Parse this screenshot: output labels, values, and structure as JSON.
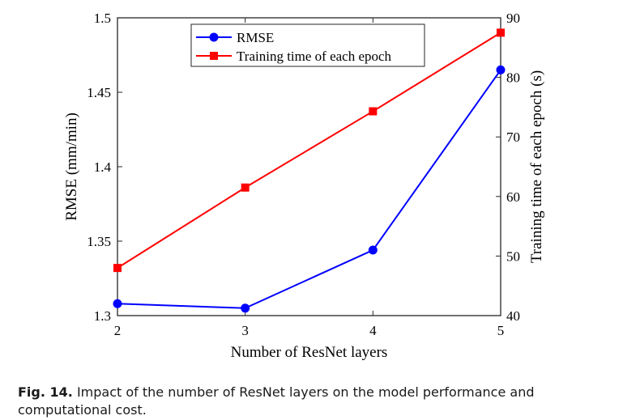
{
  "chart_data": {
    "type": "line",
    "xlabel": "Number of ResNet layers",
    "ylabel": "RMSE (mm/min)",
    "y2label": "Training time of each epoch (s)",
    "x": [
      2,
      3,
      4,
      5
    ],
    "xlim": [
      2,
      5
    ],
    "xticks": [
      "2",
      "3",
      "4",
      "5"
    ],
    "ylim": [
      1.3,
      1.5
    ],
    "yticks": [
      "1.3",
      "1.35",
      "1.4",
      "1.45",
      "1.5"
    ],
    "y2lim": [
      40,
      90
    ],
    "y2ticks": [
      "40",
      "50",
      "60",
      "70",
      "80",
      "90"
    ],
    "grid": false,
    "legend_position": "top-center",
    "series": [
      {
        "name": "RMSE",
        "axis": "left",
        "color": "#0000ff",
        "marker": "circle",
        "values": [
          1.308,
          1.305,
          1.344,
          1.465
        ]
      },
      {
        "name": "Training time of each epoch",
        "axis": "right",
        "color": "#ff0000",
        "marker": "square",
        "values": [
          48.0,
          61.5,
          74.3,
          87.5
        ]
      }
    ]
  },
  "caption": {
    "label": "Fig. 14.",
    "text": "Impact of the number of ResNet layers on the model performance and computational cost."
  }
}
